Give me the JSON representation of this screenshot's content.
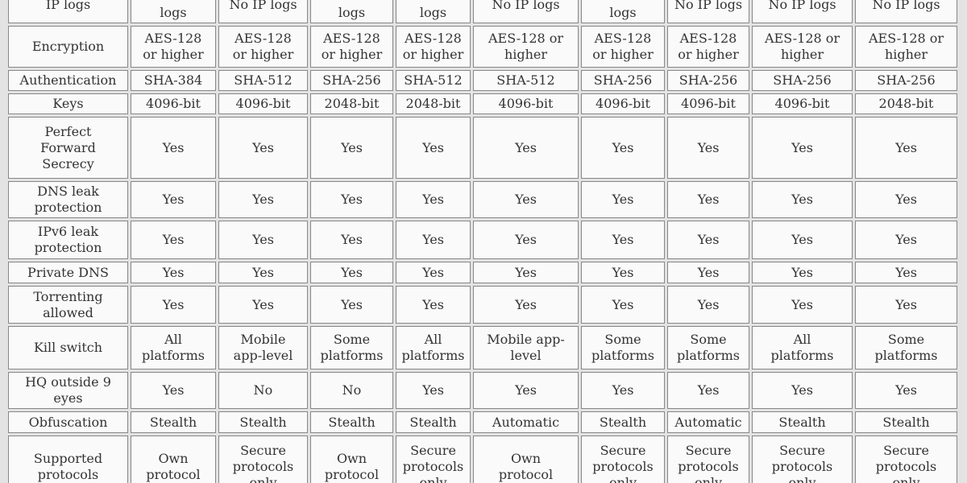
{
  "colors": {
    "page_background": "#e3e3e3",
    "cell_background": "#fafafa",
    "cell_border": "#878787",
    "text": "#333333"
  },
  "chart_data": {
    "type": "table",
    "description_visible_portion": "VPN feature comparison table, header row cut off at top and last row cut off at bottom",
    "num_value_columns": 9,
    "rows": [
      {
        "label": "IP logs",
        "values": [
          "\nlogs",
          "No IP logs",
          "\nlogs",
          "\nlogs",
          "No IP logs",
          "\nlogs",
          "No IP logs",
          "No IP logs",
          "No IP logs"
        ]
      },
      {
        "label": "Encryption",
        "values": [
          "AES-128\nor higher",
          "AES-128\nor higher",
          "AES-128\nor higher",
          "AES-128\nor higher",
          "AES-128 or\nhigher",
          "AES-128\nor higher",
          "AES-128\nor higher",
          "AES-128 or\nhigher",
          "AES-128 or\nhigher"
        ]
      },
      {
        "label": "Authentication",
        "values": [
          "SHA-384",
          "SHA-512",
          "SHA-256",
          "SHA-512",
          "SHA-512",
          "SHA-256",
          "SHA-256",
          "SHA-256",
          "SHA-256"
        ]
      },
      {
        "label": "Keys",
        "values": [
          "4096-bit",
          "4096-bit",
          "2048-bit",
          "2048-bit",
          "4096-bit",
          "4096-bit",
          "4096-bit",
          "4096-bit",
          "2048-bit"
        ]
      },
      {
        "label": "Perfect\nForward\nSecrecy",
        "values": [
          "Yes",
          "Yes",
          "Yes",
          "Yes",
          "Yes",
          "Yes",
          "Yes",
          "Yes",
          "Yes"
        ]
      },
      {
        "label": "DNS leak\nprotection",
        "values": [
          "Yes",
          "Yes",
          "Yes",
          "Yes",
          "Yes",
          "Yes",
          "Yes",
          "Yes",
          "Yes"
        ]
      },
      {
        "label": "IPv6 leak\nprotection",
        "values": [
          "Yes",
          "Yes",
          "Yes",
          "Yes",
          "Yes",
          "Yes",
          "Yes",
          "Yes",
          "Yes"
        ]
      },
      {
        "label": "Private DNS",
        "values": [
          "Yes",
          "Yes",
          "Yes",
          "Yes",
          "Yes",
          "Yes",
          "Yes",
          "Yes",
          "Yes"
        ]
      },
      {
        "label": "Torrenting\nallowed",
        "values": [
          "Yes",
          "Yes",
          "Yes",
          "Yes",
          "Yes",
          "Yes",
          "Yes",
          "Yes",
          "Yes"
        ]
      },
      {
        "label": "Kill switch",
        "values": [
          "All\nplatforms",
          "Mobile\napp-level",
          "Some\nplatforms",
          "All\nplatforms",
          "Mobile app-\nlevel",
          "Some\nplatforms",
          "Some\nplatforms",
          "All\nplatforms",
          "Some\nplatforms"
        ]
      },
      {
        "label": "HQ outside 9\neyes",
        "values": [
          "Yes",
          "No",
          "No",
          "Yes",
          "Yes",
          "Yes",
          "Yes",
          "Yes",
          "Yes"
        ]
      },
      {
        "label": "Obfuscation",
        "values": [
          "Stealth",
          "Stealth",
          "Stealth",
          "Stealth",
          "Automatic",
          "Stealth",
          "Automatic",
          "Stealth",
          "Stealth"
        ]
      },
      {
        "label": "Supported\nprotocols",
        "values": [
          "Own\nprotocol",
          "Secure\nprotocols\nonly",
          "Own\nprotocol",
          "Secure\nprotocols\nonly",
          "Own\nprotocol",
          "Secure\nprotocols\nonly",
          "Secure\nprotocols\nonly",
          "Secure\nprotocols\nonly",
          "Secure\nprotocols\nonly"
        ]
      }
    ]
  }
}
